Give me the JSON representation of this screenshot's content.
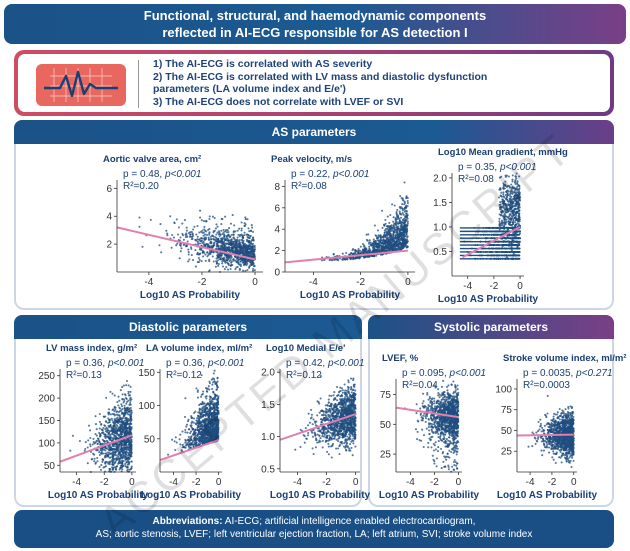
{
  "banner": {
    "line1": "Functional, structural, and haemodynamic components",
    "line2": "reflected in AI-ECG responsible for AS detection I"
  },
  "summary": {
    "points": [
      "1) The AI-ECG is correlated with AS severity",
      "2) The AI-ECG is correlated with LV mass and diastolic dysfunction",
      "parameters (LA volume index and E/e')",
      "3) The AI-ECG does not correlate with LVEF or SVI"
    ]
  },
  "sections": {
    "as": "AS parameters",
    "diastolic": "Diastolic parameters",
    "systolic": "Systolic parameters"
  },
  "abbreviations": {
    "label": "Abbreviations:",
    "line1": " AI-ECG; artificial intelligence enabled electrocardiogram,",
    "line2": "AS; aortic stenosis, LVEF; left ventricular ejection fraction, LA; left atrium, SVI; stroke volume index"
  },
  "watermark": "ACCEPTED MANUSCRIPT",
  "colors": {
    "dots": "#1f4e7f",
    "fit": "#e07fb0",
    "header_blue": "#1b5287",
    "header_purple": "#7a3f86"
  },
  "chart_data": [
    {
      "type": "scatter",
      "title": "Aortic valve area, cm²",
      "xlabel": "Log10 AS Probability",
      "xlim": [
        -5.2,
        0.3
      ],
      "xticks": [
        -4,
        -2,
        0
      ],
      "xtick_labels": [
        "-4",
        "-2",
        "0"
      ],
      "ylim": [
        0,
        6.6
      ],
      "yticks": [
        2,
        4,
        6
      ],
      "ytick_labels": [
        "2",
        "4",
        "6"
      ],
      "p_label": "p = 0.48, ",
      "p_value": "p<0.001",
      "r2_label": "R²=0.20",
      "fit": {
        "x": [
          -5.2,
          0
        ],
        "y": [
          3.2,
          0.9
        ]
      },
      "cloud": {
        "kind": "avad"
      }
    },
    {
      "type": "scatter",
      "title": "Peak velocity, m/s",
      "xlabel": "Log10 AS Probability",
      "xlim": [
        -5.2,
        0.3
      ],
      "xticks": [
        -4,
        -2,
        0
      ],
      "xtick_labels": [
        "-4",
        "-2",
        "0"
      ],
      "ylim": [
        0,
        8.6
      ],
      "yticks": [
        0,
        2,
        4,
        6,
        8
      ],
      "ytick_labels": [
        "0",
        "2",
        "4",
        "6",
        "8"
      ],
      "p_label": "p = 0.22, ",
      "p_value": "p<0.001",
      "r2_label": "R²=0.08",
      "fit": {
        "x": [
          -5.2,
          0
        ],
        "y": [
          0.9,
          2
        ]
      },
      "cloud": {
        "kind": "velocity"
      }
    },
    {
      "type": "scatter",
      "title": "Log10 Mean gradient, mmHg",
      "xlabel": "Log10 AS Probability",
      "xlim": [
        -5.2,
        0.3
      ],
      "xticks": [
        -4,
        -2,
        0
      ],
      "xtick_labels": [
        "-4",
        "-2",
        "0"
      ],
      "ylim": [
        0,
        2.1
      ],
      "yticks": [
        0.5,
        1,
        1.5,
        2
      ],
      "ytick_labels": [
        "0.5",
        "1.0",
        "1.5",
        "2.0"
      ],
      "p_label": "p = 0.35, ",
      "p_value": "p<0.001",
      "r2_label": "R²=0.08",
      "fit": {
        "x": [
          -4.4,
          0
        ],
        "y": [
          0.38,
          1
        ]
      },
      "cloud": {
        "kind": "gradient"
      }
    },
    {
      "type": "scatter",
      "title": "LV mass index, g/m²",
      "xlabel": "Log10 AS Probability",
      "xlim": [
        -5.2,
        0.3
      ],
      "xticks": [
        -4,
        -2,
        0
      ],
      "xtick_labels": [
        "-4",
        "-2",
        "0"
      ],
      "ylim": [
        35,
        265
      ],
      "yticks": [
        50,
        100,
        150,
        200,
        250
      ],
      "ytick_labels": [
        "50",
        "100",
        "150",
        "200",
        "250"
      ],
      "p_label": "p = 0.36, ",
      "p_value": "p<0.001",
      "r2_label": "R²=0.13",
      "fit": {
        "x": [
          -5.2,
          0
        ],
        "y": [
          58,
          117
        ]
      },
      "cloud": {
        "kind": "lvm"
      }
    },
    {
      "type": "scatter",
      "title": "LA volume index, ml/m²",
      "xlabel": "Log10 AS Probability",
      "xlim": [
        -5.2,
        0.3
      ],
      "xticks": [
        -4,
        -2,
        0
      ],
      "xtick_labels": [
        "-4",
        "-2",
        "0"
      ],
      "ylim": [
        0,
        155
      ],
      "yticks": [
        50,
        100,
        150
      ],
      "ytick_labels": [
        "50",
        "100",
        "150"
      ],
      "p_label": "p = 0.36, ",
      "p_value": "p<0.001",
      "r2_label": "R²=0.12",
      "fit": {
        "x": [
          -5.2,
          0
        ],
        "y": [
          18,
          48
        ]
      },
      "cloud": {
        "kind": "la"
      }
    },
    {
      "type": "scatter",
      "title": "Log10 Medial E/e'",
      "xlabel": "Log10 AS Probability",
      "xlim": [
        -5.2,
        0.3
      ],
      "xticks": [
        -4,
        -2,
        0
      ],
      "xtick_labels": [
        "-4",
        "-2",
        "0"
      ],
      "ylim": [
        0.45,
        2.05
      ],
      "yticks": [
        0.5,
        1,
        1.5,
        2
      ],
      "ytick_labels": [
        "0.5",
        "1.0",
        "1.5",
        "2.0"
      ],
      "p_label": "p = 0.42, ",
      "p_value": "p<0.001",
      "r2_label": "R²=0.12",
      "fit": {
        "x": [
          -5.2,
          0
        ],
        "y": [
          0.95,
          1.35
        ]
      },
      "cloud": {
        "kind": "ee"
      }
    },
    {
      "type": "scatter",
      "title": "LVEF, %",
      "xlabel": "Log10 AS Probability",
      "xlim": [
        -5.2,
        0.3
      ],
      "xticks": [
        -4,
        -2,
        0
      ],
      "xtick_labels": [
        "-4",
        "-2",
        "0"
      ],
      "ylim": [
        10,
        88
      ],
      "yticks": [
        25,
        50,
        75
      ],
      "ytick_labels": [
        "25",
        "50",
        "75"
      ],
      "p_label": "p = 0.095, ",
      "p_value": "p<0.001",
      "r2_label": "R²=0.04",
      "fit": {
        "x": [
          -5.2,
          0
        ],
        "y": [
          64,
          56
        ]
      },
      "cloud": {
        "kind": "lvef"
      }
    },
    {
      "type": "scatter",
      "title": "Stroke volume index, ml/m²",
      "xlabel": "Log10 AS Probability",
      "xlim": [
        -5.2,
        0.3
      ],
      "xticks": [
        -4,
        -2,
        0
      ],
      "xtick_labels": [
        "-4",
        "-2",
        "0"
      ],
      "ylim": [
        0,
        112
      ],
      "yticks": [
        25,
        50,
        75,
        100
      ],
      "ytick_labels": [
        "25",
        "50",
        "75",
        "100"
      ],
      "p_label": "p = 0.0035, ",
      "p_value": "p<0.271",
      "r2_label": "R²=0.0003",
      "fit": {
        "x": [
          -5.2,
          0
        ],
        "y": [
          44,
          45
        ]
      },
      "cloud": {
        "kind": "svi"
      }
    }
  ]
}
